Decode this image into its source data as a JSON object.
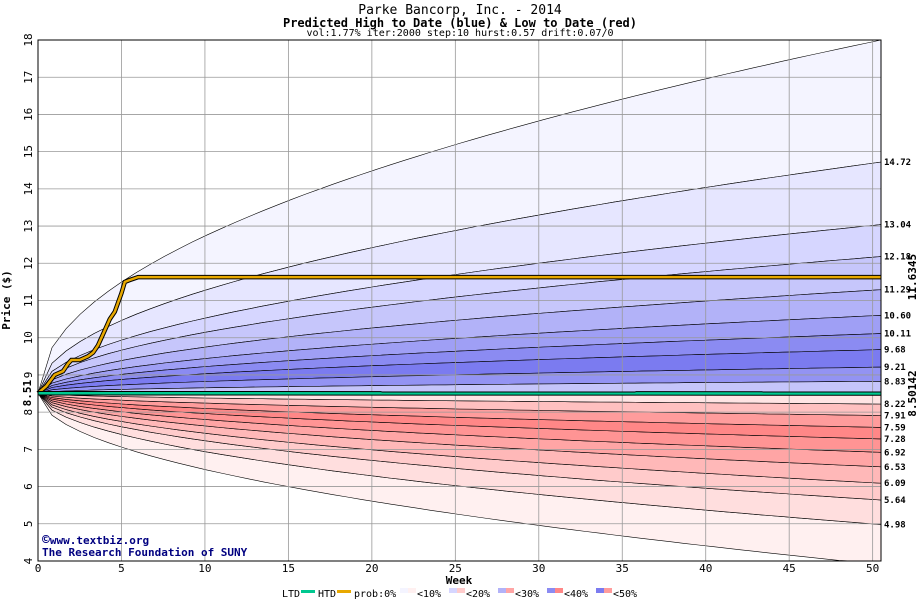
{
  "chart_data": {
    "type": "area",
    "title": "Parke Bancorp, Inc. - 2014",
    "subtitle": "Predicted High to Date (blue) &  Low to Date (red)",
    "params": "vol:1.77% iter:2000 step:10 hurst:0.57 drift:0.07/0",
    "xlabel": "Week",
    "ylabel": "Price ($)",
    "xlim": [
      0,
      50.5
    ],
    "ylim": [
      4,
      18
    ],
    "xticks": [
      0,
      5,
      10,
      15,
      20,
      25,
      30,
      35,
      40,
      45,
      50
    ],
    "yticks": [
      4,
      5,
      6,
      7,
      8,
      9,
      10,
      11,
      12,
      13,
      14,
      15,
      16,
      17,
      18
    ],
    "start_price": 8.51,
    "start_label": "8.51",
    "high_bands_end": [
      18.0,
      14.72,
      13.04,
      12.18,
      11.29,
      10.6,
      10.11,
      9.68,
      9.21,
      8.83
    ],
    "high_labels": [
      "14.72",
      "13.04",
      "12.18",
      "11.29",
      "10.60",
      "10.11",
      "9.68",
      "9.21",
      "8.83"
    ],
    "low_bands_end": [
      3.9,
      4.98,
      5.64,
      6.09,
      6.53,
      6.92,
      7.28,
      7.59,
      7.91,
      8.22
    ],
    "low_labels": [
      "4.98",
      "5.64",
      "6.09",
      "6.53",
      "6.92",
      "7.28",
      "7.59",
      "7.91",
      "8.22"
    ],
    "htd_series": {
      "x": [
        0,
        0.5,
        1,
        1.5,
        1.8,
        2,
        2.5,
        3,
        3.3,
        3.6,
        4,
        4.3,
        4.6,
        5,
        5.2,
        5.5,
        6,
        10,
        20,
        30,
        40,
        50.5
      ],
      "y": [
        8.51,
        8.7,
        9.0,
        9.1,
        9.3,
        9.4,
        9.4,
        9.5,
        9.6,
        9.8,
        10.2,
        10.5,
        10.7,
        11.2,
        11.5,
        11.55,
        11.63,
        11.63,
        11.63,
        11.63,
        11.63,
        11.63
      ]
    },
    "ltd_value": 8.5,
    "htd_end_label": "11.6345",
    "ltd_end_label": "8.50142",
    "colors": {
      "htd": "#e8a800",
      "ltd": "#00c890",
      "high_fills": [
        "#f4f4ff",
        "#e6e6ff",
        "#d6d6ff",
        "#c6c6fb",
        "#b2b2f8",
        "#9f9ff5",
        "#8b8bf2",
        "#7b7bf0",
        "#9393f3",
        "#c5c5fa"
      ],
      "low_fills": [
        "#fff0f0",
        "#ffdede",
        "#ffcbcb",
        "#ffb8b8",
        "#ffa5a5",
        "#ff9494",
        "#ff8787",
        "#ff9c9c",
        "#ffc0c0",
        "#ffe4e4"
      ]
    }
  },
  "credit": {
    "website": "www.textbiz.org",
    "copyright": "©",
    "org": "The Research Foundation of SUNY"
  },
  "legend": {
    "ltd": "LTD",
    "htd": "HTD",
    "prob": "prob:0%",
    "items": [
      "<10%",
      "<20%",
      "<30%",
      "<40%",
      "<50%"
    ]
  }
}
